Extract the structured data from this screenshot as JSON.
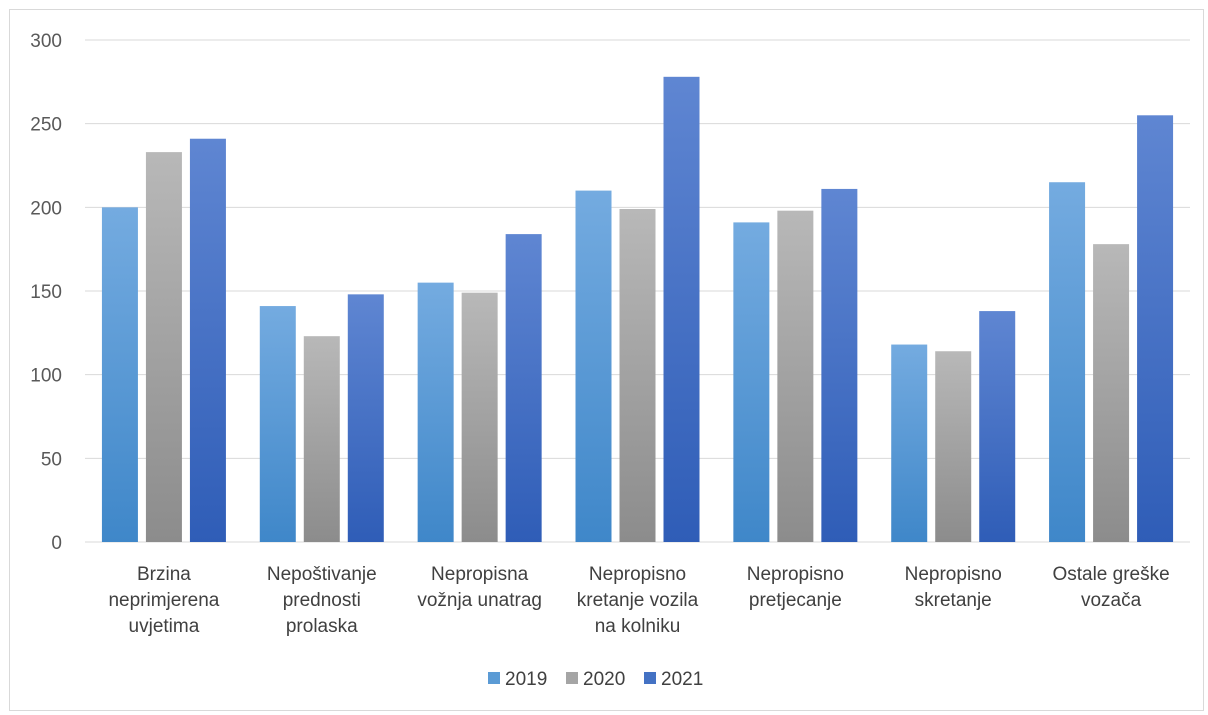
{
  "chart_data": {
    "type": "bar",
    "categories": [
      [
        "Brzina",
        "neprimjerena",
        "uvjetima"
      ],
      [
        "Nepoštivanje",
        "prednosti",
        "prolaska"
      ],
      [
        "Nepropisna",
        "vožnja unatrag"
      ],
      [
        "Nepropisno",
        "kretanje vozila",
        "na kolniku"
      ],
      [
        "Nepropisno",
        "pretjecanje"
      ],
      [
        "Nepropisno",
        "skretanje"
      ],
      [
        "Ostale greške",
        "vozača"
      ]
    ],
    "series": [
      {
        "name": "2019",
        "values": [
          200,
          141,
          155,
          210,
          191,
          118,
          215
        ],
        "color": "#5b9bd5"
      },
      {
        "name": "2020",
        "values": [
          233,
          123,
          149,
          199,
          198,
          114,
          178
        ],
        "color": "#a5a5a5"
      },
      {
        "name": "2021",
        "values": [
          241,
          148,
          184,
          278,
          211,
          138,
          255
        ],
        "color": "#4472c4"
      }
    ],
    "ylim": [
      0,
      300
    ],
    "yticks": [
      0,
      50,
      100,
      150,
      200,
      250,
      300
    ],
    "grid": true,
    "legend": "bottom"
  }
}
